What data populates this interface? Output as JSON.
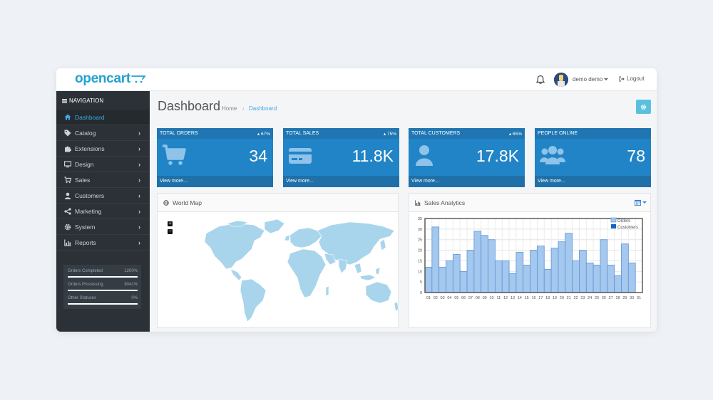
{
  "header": {
    "logo_text": "opencart",
    "user_name": "demo demo",
    "logout_label": "Logout"
  },
  "sidebar": {
    "nav_title": "NAVIGATION",
    "items": [
      {
        "label": "Dashboard",
        "icon": "home-icon",
        "active": true
      },
      {
        "label": "Catalog",
        "icon": "tag-icon"
      },
      {
        "label": "Extensions",
        "icon": "puzzle-icon"
      },
      {
        "label": "Design",
        "icon": "monitor-icon"
      },
      {
        "label": "Sales",
        "icon": "cart-icon"
      },
      {
        "label": "Customers",
        "icon": "user-icon"
      },
      {
        "label": "Marketing",
        "icon": "share-icon"
      },
      {
        "label": "System",
        "icon": "gear-icon"
      },
      {
        "label": "Reports",
        "icon": "bar-chart-icon"
      }
    ],
    "statuses": [
      {
        "label": "Orders Completed",
        "value": "1200%",
        "fill": 1.0
      },
      {
        "label": "Orders Processing",
        "value": "8041%",
        "fill": 1.0
      },
      {
        "label": "Other Statuses",
        "value": "0%",
        "fill": 1.0
      }
    ]
  },
  "main": {
    "page_title": "Dashboard",
    "breadcrumb_home": "Home",
    "breadcrumb_separator": "›",
    "breadcrumb_current": "Dashboard",
    "tiles": [
      {
        "title": "TOTAL ORDERS",
        "change": "67%",
        "value": "34",
        "more": "View more...",
        "icon": "cart-icon"
      },
      {
        "title": "TOTAL SALES",
        "change": "75%",
        "value": "11.8K",
        "more": "View more...",
        "icon": "credit-card-icon"
      },
      {
        "title": "TOTAL CUSTOMERS",
        "change": "65%",
        "value": "17.8K",
        "more": "View more...",
        "icon": "user-icon"
      },
      {
        "title": "PEOPLE ONLINE",
        "change": "",
        "value": "78",
        "more": "View more...",
        "icon": "users-icon"
      }
    ],
    "world_map_title": "World Map",
    "zoom_in_label": "+",
    "zoom_out_label": "−",
    "sales_title": "Sales Analytics"
  },
  "colors": {
    "accent": "#2184c6",
    "sidebar_bg": "#2b3137",
    "active_link": "#3fa9e2",
    "info_button": "#5bc0de",
    "bar_fill": "#a4c8ee",
    "bar_stroke": "#5f93d6",
    "map_fill": "#a8d5ec"
  },
  "chart_data": {
    "type": "bar",
    "title": "Sales Analytics",
    "categories": [
      "01",
      "02",
      "03",
      "04",
      "05",
      "06",
      "07",
      "08",
      "09",
      "10",
      "11",
      "12",
      "13",
      "14",
      "15",
      "16",
      "17",
      "18",
      "19",
      "20",
      "21",
      "22",
      "23",
      "24",
      "25",
      "26",
      "27",
      "28",
      "29",
      "30",
      "31"
    ],
    "series": [
      {
        "name": "Orders",
        "values": [
          12,
          31,
          12,
          15,
          18,
          10,
          20,
          29,
          27,
          25,
          15,
          15,
          9,
          19,
          13,
          20,
          22,
          11,
          21,
          24,
          28,
          15,
          20,
          14,
          13,
          25,
          13,
          8,
          23,
          14,
          0
        ]
      },
      {
        "name": "Customers",
        "values": [
          0,
          0,
          0,
          0,
          0,
          0,
          0,
          0,
          0,
          0,
          0,
          0,
          0,
          0,
          0,
          0,
          0,
          0,
          0,
          0,
          0,
          0,
          0,
          0,
          0,
          0,
          0,
          0,
          0,
          0,
          0
        ]
      }
    ],
    "ylim": [
      0,
      35
    ],
    "yticks": [
      0,
      5,
      10,
      15,
      20,
      25,
      30,
      35
    ],
    "grid": true,
    "legend": "top-right"
  }
}
